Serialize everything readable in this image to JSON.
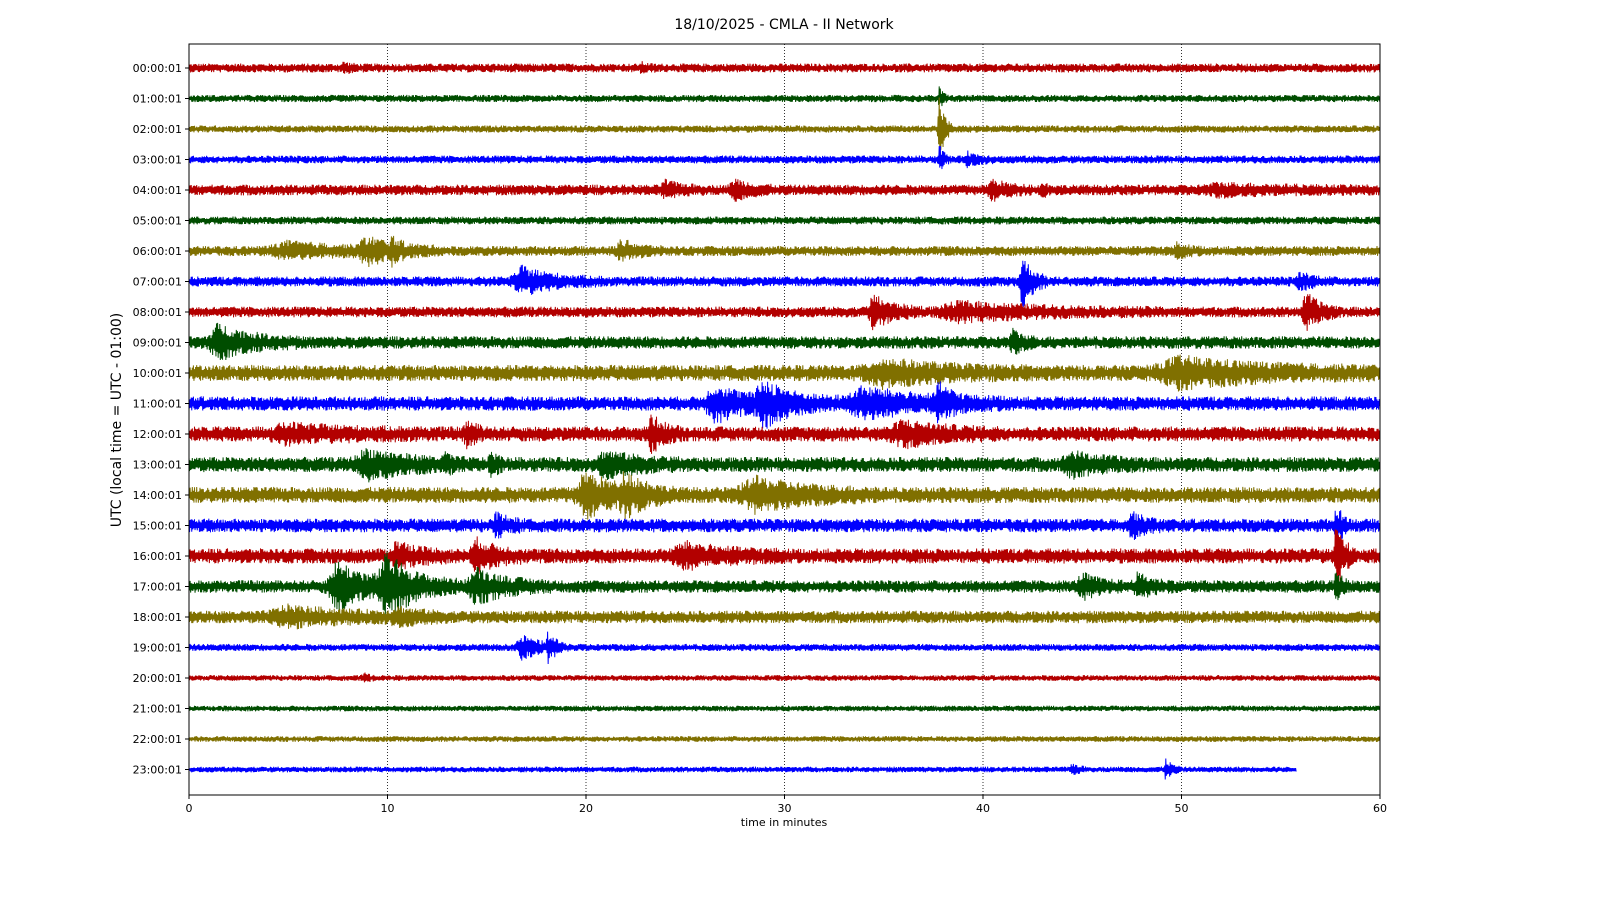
{
  "chart_data": {
    "type": "line",
    "title": "18/10/2025 - CMLA - II Network",
    "xlabel": "time in minutes",
    "ylabel": "UTC (local time = UTC - 01:00)",
    "xlim": [
      0,
      60
    ],
    "xticks": [
      "0",
      "10",
      "20",
      "30",
      "40",
      "50",
      "60"
    ],
    "xtick_values": [
      0,
      10,
      20,
      30,
      40,
      50,
      60
    ],
    "grid": "vertical dotted",
    "colors": [
      "#b30000",
      "#004d00",
      "#807000",
      "#0000ff"
    ],
    "rows": [
      {
        "label": "00:00:01",
        "end_minute": 60,
        "base_amp": 0.25,
        "events": [
          {
            "t": 7.8,
            "amp": 0.2,
            "dur": 0.3
          },
          {
            "t": 22.8,
            "amp": 0.15,
            "dur": 0.3
          }
        ]
      },
      {
        "label": "01:00:01",
        "end_minute": 60,
        "base_amp": 0.2,
        "events": [
          {
            "t": 37.8,
            "amp": 0.5,
            "dur": 0.2
          }
        ]
      },
      {
        "label": "02:00:01",
        "end_minute": 60,
        "base_amp": 0.2,
        "events": [
          {
            "t": 37.8,
            "amp": 1.8,
            "dur": 0.25
          }
        ]
      },
      {
        "label": "03:00:01",
        "end_minute": 60,
        "base_amp": 0.22,
        "events": [
          {
            "t": 37.8,
            "amp": 0.8,
            "dur": 0.2
          },
          {
            "t": 39.2,
            "amp": 0.3,
            "dur": 0.6
          }
        ]
      },
      {
        "label": "04:00:01",
        "end_minute": 60,
        "base_amp": 0.3,
        "events": [
          {
            "t": 24.0,
            "amp": 0.35,
            "dur": 0.8
          },
          {
            "t": 27.5,
            "amp": 0.45,
            "dur": 0.8
          },
          {
            "t": 40.5,
            "amp": 0.4,
            "dur": 0.8
          },
          {
            "t": 43.0,
            "amp": 0.25,
            "dur": 0.3
          },
          {
            "t": 52.0,
            "amp": 0.2,
            "dur": 3.0
          }
        ]
      },
      {
        "label": "05:00:01",
        "end_minute": 60,
        "base_amp": 0.22,
        "events": []
      },
      {
        "label": "06:00:01",
        "end_minute": 60,
        "base_amp": 0.28,
        "events": [
          {
            "t": 5.0,
            "amp": 0.35,
            "dur": 3.0
          },
          {
            "t": 9.0,
            "amp": 0.55,
            "dur": 1.5
          },
          {
            "t": 10.2,
            "amp": 0.4,
            "dur": 0.4
          },
          {
            "t": 21.8,
            "amp": 0.5,
            "dur": 0.8
          },
          {
            "t": 49.8,
            "amp": 0.3,
            "dur": 0.5
          }
        ]
      },
      {
        "label": "07:00:01",
        "end_minute": 60,
        "base_amp": 0.28,
        "events": [
          {
            "t": 16.8,
            "amp": 0.65,
            "dur": 1.6
          },
          {
            "t": 42.0,
            "amp": 1.3,
            "dur": 0.5
          },
          {
            "t": 56.0,
            "amp": 0.4,
            "dur": 0.6
          }
        ]
      },
      {
        "label": "08:00:01",
        "end_minute": 60,
        "base_amp": 0.3,
        "events": [
          {
            "t": 34.5,
            "amp": 0.75,
            "dur": 1.0
          },
          {
            "t": 39.0,
            "amp": 0.4,
            "dur": 4.0
          },
          {
            "t": 56.3,
            "amp": 0.9,
            "dur": 0.7
          }
        ]
      },
      {
        "label": "09:00:01",
        "end_minute": 60,
        "base_amp": 0.35,
        "events": [
          {
            "t": 1.5,
            "amp": 0.8,
            "dur": 1.6
          },
          {
            "t": 41.5,
            "amp": 0.5,
            "dur": 0.5
          }
        ]
      },
      {
        "label": "10:00:01",
        "end_minute": 60,
        "base_amp": 0.45,
        "events": [
          {
            "t": 35.0,
            "amp": 0.5,
            "dur": 3.0
          },
          {
            "t": 50.0,
            "amp": 0.6,
            "dur": 4.0
          }
        ]
      },
      {
        "label": "11:00:01",
        "end_minute": 60,
        "base_amp": 0.4,
        "events": [
          {
            "t": 26.5,
            "amp": 0.85,
            "dur": 1.5
          },
          {
            "t": 29.0,
            "amp": 0.95,
            "dur": 1.5
          },
          {
            "t": 34.0,
            "amp": 0.65,
            "dur": 3.0
          },
          {
            "t": 37.8,
            "amp": 0.8,
            "dur": 0.6
          }
        ]
      },
      {
        "label": "12:00:01",
        "end_minute": 60,
        "base_amp": 0.42,
        "events": [
          {
            "t": 5.0,
            "amp": 0.3,
            "dur": 3.0
          },
          {
            "t": 14.0,
            "amp": 0.5,
            "dur": 0.5
          },
          {
            "t": 23.3,
            "amp": 0.85,
            "dur": 0.6
          },
          {
            "t": 36.0,
            "amp": 0.5,
            "dur": 2.0
          }
        ]
      },
      {
        "label": "13:00:01",
        "end_minute": 60,
        "base_amp": 0.42,
        "events": [
          {
            "t": 9.0,
            "amp": 0.6,
            "dur": 2.0
          },
          {
            "t": 12.9,
            "amp": 0.5,
            "dur": 0.2
          },
          {
            "t": 15.2,
            "amp": 0.55,
            "dur": 0.3
          },
          {
            "t": 21.0,
            "amp": 0.5,
            "dur": 1.5
          },
          {
            "t": 44.5,
            "amp": 0.45,
            "dur": 1.5
          }
        ]
      },
      {
        "label": "14:00:01",
        "end_minute": 60,
        "base_amp": 0.45,
        "events": [
          {
            "t": 20.0,
            "amp": 1.0,
            "dur": 1.5
          },
          {
            "t": 22.0,
            "amp": 0.8,
            "dur": 1.0
          },
          {
            "t": 28.5,
            "amp": 0.7,
            "dur": 2.5
          }
        ]
      },
      {
        "label": "15:00:01",
        "end_minute": 60,
        "base_amp": 0.38,
        "events": [
          {
            "t": 15.5,
            "amp": 0.5,
            "dur": 0.6
          },
          {
            "t": 47.5,
            "amp": 0.55,
            "dur": 0.6
          },
          {
            "t": 57.8,
            "amp": 1.0,
            "dur": 0.3
          }
        ]
      },
      {
        "label": "16:00:01",
        "end_minute": 60,
        "base_amp": 0.42,
        "events": [
          {
            "t": 10.5,
            "amp": 0.6,
            "dur": 1.0
          },
          {
            "t": 14.5,
            "amp": 0.7,
            "dur": 1.0
          },
          {
            "t": 25.0,
            "amp": 0.5,
            "dur": 2.0
          },
          {
            "t": 57.8,
            "amp": 1.6,
            "dur": 0.4
          }
        ]
      },
      {
        "label": "17:00:01",
        "end_minute": 60,
        "base_amp": 0.35,
        "events": [
          {
            "t": 7.5,
            "amp": 1.2,
            "dur": 1.5
          },
          {
            "t": 10.0,
            "amp": 1.4,
            "dur": 1.5
          },
          {
            "t": 14.5,
            "amp": 0.8,
            "dur": 1.5
          },
          {
            "t": 45.0,
            "amp": 0.55,
            "dur": 0.8
          },
          {
            "t": 47.8,
            "amp": 0.5,
            "dur": 0.8
          },
          {
            "t": 57.8,
            "amp": 0.7,
            "dur": 0.3
          }
        ]
      },
      {
        "label": "18:00:01",
        "end_minute": 60,
        "base_amp": 0.35,
        "events": [
          {
            "t": 5.0,
            "amp": 0.4,
            "dur": 3.0
          },
          {
            "t": 10.5,
            "amp": 0.3,
            "dur": 1.0
          }
        ]
      },
      {
        "label": "19:00:01",
        "end_minute": 60,
        "base_amp": 0.2,
        "events": [
          {
            "t": 16.8,
            "amp": 0.55,
            "dur": 1.0
          },
          {
            "t": 18.1,
            "amp": 0.75,
            "dur": 0.3
          }
        ]
      },
      {
        "label": "20:00:01",
        "end_minute": 60,
        "base_amp": 0.16,
        "events": [
          {
            "t": 8.8,
            "amp": 0.2,
            "dur": 0.3
          }
        ]
      },
      {
        "label": "21:00:01",
        "end_minute": 60,
        "base_amp": 0.16,
        "events": []
      },
      {
        "label": "22:00:01",
        "end_minute": 60,
        "base_amp": 0.16,
        "events": []
      },
      {
        "label": "23:00:01",
        "end_minute": 55.8,
        "base_amp": 0.16,
        "events": [
          {
            "t": 44.5,
            "amp": 0.3,
            "dur": 0.3
          },
          {
            "t": 49.2,
            "amp": 0.55,
            "dur": 0.3
          }
        ]
      }
    ]
  }
}
